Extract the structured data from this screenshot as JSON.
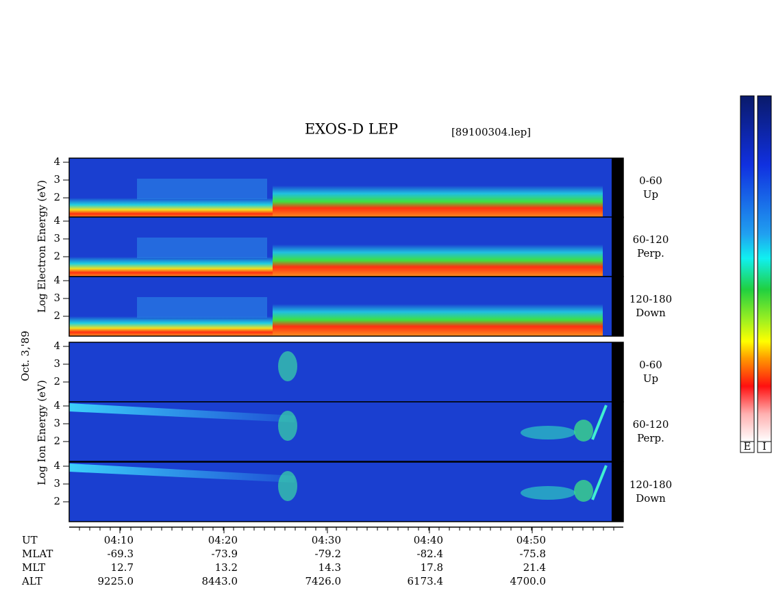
{
  "header": {
    "title": "EXOS-D LEP",
    "file": "[89100304.lep]"
  },
  "left_labels": {
    "electron": "Log Electron Energy (eV)",
    "date": "Oct. 3,'89",
    "ion": "Log Ion Energy (eV)"
  },
  "panels": [
    {
      "species": "electron",
      "ticks": [
        "4",
        "3",
        "2"
      ],
      "pitch": "0-60",
      "direction": "Up"
    },
    {
      "species": "electron",
      "ticks": [
        "4",
        "3",
        "2"
      ],
      "pitch": "60-120",
      "direction": "Perp."
    },
    {
      "species": "electron",
      "ticks": [
        "4",
        "3",
        "2"
      ],
      "pitch": "120-180",
      "direction": "Down"
    },
    {
      "species": "ion",
      "ticks": [
        "4",
        "3",
        "2"
      ],
      "pitch": "0-60",
      "direction": "Up"
    },
    {
      "species": "ion",
      "ticks": [
        "4",
        "3",
        "2"
      ],
      "pitch": "60-120",
      "direction": "Perp."
    },
    {
      "species": "ion",
      "ticks": [
        "4",
        "3",
        "2"
      ],
      "pitch": "120-180",
      "direction": "Down"
    }
  ],
  "time_axis": {
    "rows": [
      {
        "label": "UT",
        "values": [
          "04:10",
          "04:20",
          "04:30",
          "04:40",
          "04:50"
        ]
      },
      {
        "label": "MLAT",
        "values": [
          "-69.3",
          "-73.9",
          "-79.2",
          "-82.4",
          "-75.8"
        ]
      },
      {
        "label": "MLT",
        "values": [
          "12.7",
          "13.2",
          "14.3",
          "17.8",
          "21.4"
        ]
      },
      {
        "label": "ALT",
        "values": [
          "9225.0",
          "8443.0",
          "7426.0",
          "6173.4",
          "4700.0"
        ]
      }
    ]
  },
  "colorbar": {
    "labels": [
      "E",
      "I"
    ]
  }
}
